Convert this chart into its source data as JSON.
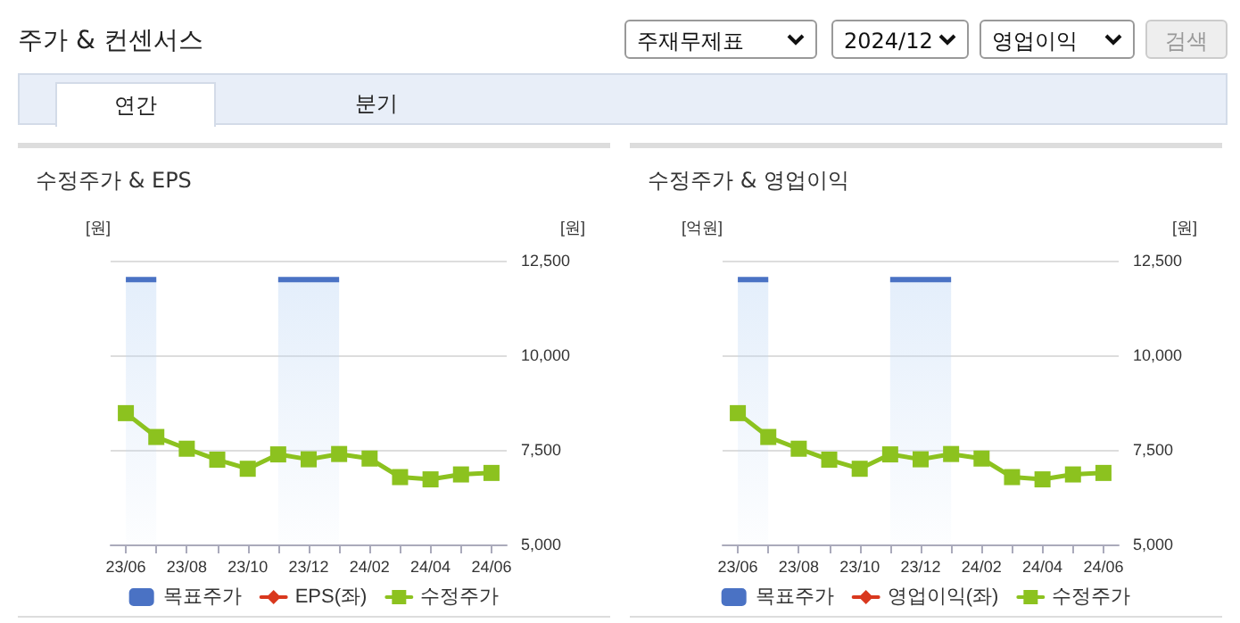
{
  "chart_data": [
    {
      "type": "other",
      "title": "주가 & 컨센서스",
      "annotations": [
        "주재무제표",
        "2024/12",
        "영업이익",
        "검색",
        "연간",
        "분기"
      ]
    },
    {
      "type": "line",
      "title": "수정주가 & EPS",
      "ylabel": "[원]",
      "y2label": "[원]",
      "categories": [
        "23/06",
        null,
        "23/08",
        null,
        "23/10",
        null,
        "23/12",
        null,
        "24/02",
        null,
        "24/04",
        null,
        "24/06"
      ],
      "series": [
        {
          "name": "목표주가",
          "type": "area",
          "axis": "y2",
          "color": "#4a72c4",
          "values": [
            12000,
            12000,
            null,
            null,
            null,
            12000,
            12000,
            12000,
            null,
            null,
            null,
            null,
            null
          ]
        },
        {
          "name": "EPS(좌)",
          "type": "line",
          "axis": "y",
          "color": "#d9381e",
          "marker": "diamond",
          "values": [
            null,
            null,
            null,
            null,
            null,
            null,
            null,
            null,
            null,
            null,
            null,
            null,
            null
          ]
        },
        {
          "name": "수정주가",
          "type": "line",
          "axis": "y2",
          "color": "#8cc21f",
          "marker": "square",
          "values": [
            8470,
            7840,
            7530,
            7240,
            7000,
            7380,
            7250,
            7390,
            7270,
            6780,
            6720,
            6850,
            6890
          ]
        }
      ],
      "y2lim": [
        5000,
        12500
      ],
      "y2ticks": [
        {
          "value": 5000,
          "label": "5,000"
        },
        {
          "value": 7500,
          "label": "7,500"
        },
        {
          "value": 10000,
          "label": "10,000"
        },
        {
          "value": 12500,
          "label": "12,500"
        }
      ],
      "grid": "y",
      "legend": "bottom"
    },
    {
      "type": "line",
      "title": "수정주가 & 영업이익",
      "ylabel": "[억원]",
      "y2label": "[원]",
      "categories": [
        "23/06",
        null,
        "23/08",
        null,
        "23/10",
        null,
        "23/12",
        null,
        "24/02",
        null,
        "24/04",
        null,
        "24/06"
      ],
      "series": [
        {
          "name": "목표주가",
          "type": "area",
          "axis": "y2",
          "color": "#4a72c4",
          "values": [
            12000,
            12000,
            null,
            null,
            null,
            12000,
            12000,
            12000,
            null,
            null,
            null,
            null,
            null
          ]
        },
        {
          "name": "영업이익(좌)",
          "type": "line",
          "axis": "y",
          "color": "#d9381e",
          "marker": "diamond",
          "values": [
            null,
            null,
            null,
            null,
            null,
            null,
            null,
            null,
            null,
            null,
            null,
            null,
            null
          ]
        },
        {
          "name": "수정주가",
          "type": "line",
          "axis": "y2",
          "color": "#8cc21f",
          "marker": "square",
          "values": [
            8470,
            7840,
            7530,
            7240,
            7000,
            7380,
            7250,
            7390,
            7270,
            6780,
            6720,
            6850,
            6890
          ]
        }
      ],
      "y2lim": [
        5000,
        12500
      ],
      "y2ticks": [
        {
          "value": 5000,
          "label": "5,000"
        },
        {
          "value": 7500,
          "label": "7,500"
        },
        {
          "value": 10000,
          "label": "10,000"
        },
        {
          "value": 12500,
          "label": "12,500"
        }
      ],
      "grid": "y",
      "legend": "bottom"
    }
  ]
}
